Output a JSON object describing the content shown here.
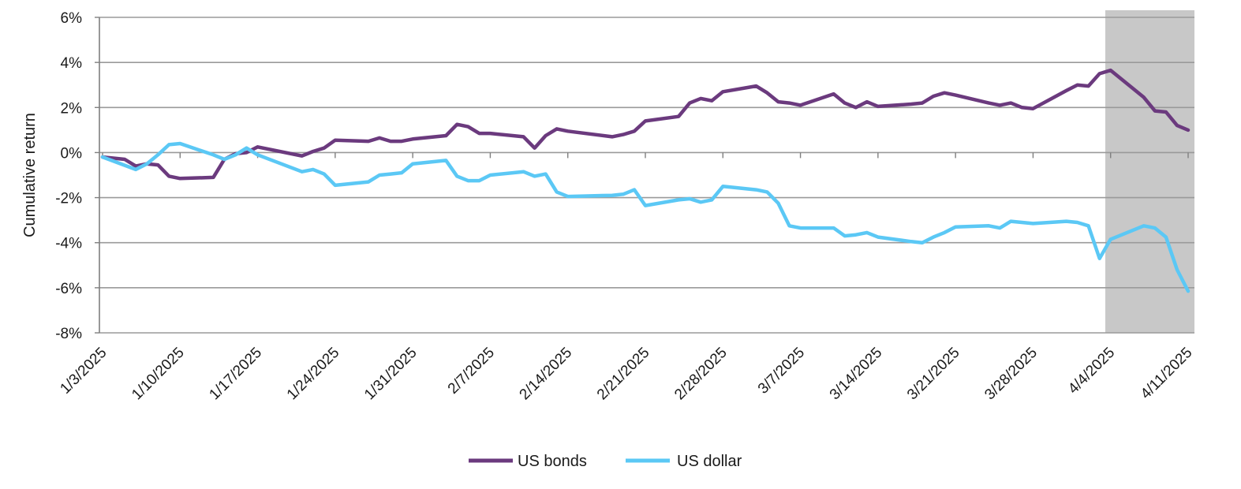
{
  "chart_data": {
    "type": "line",
    "title": "",
    "xlabel": "",
    "ylabel": "Cumulative return",
    "ylim": [
      -8,
      6
    ],
    "y_ticks": [
      6,
      4,
      2,
      0,
      -2,
      -4,
      -6,
      -8
    ],
    "y_tick_labels": [
      "6%",
      "4%",
      "2%",
      "0%",
      "-2%",
      "-4%",
      "-6%",
      "-8%"
    ],
    "x_range": [
      "2025-01-03",
      "2025-04-11"
    ],
    "x_ticks": [
      "2025-01-03",
      "2025-01-10",
      "2025-01-17",
      "2025-01-24",
      "2025-01-31",
      "2025-02-07",
      "2025-02-14",
      "2025-02-21",
      "2025-02-28",
      "2025-03-07",
      "2025-03-14",
      "2025-03-21",
      "2025-03-28",
      "2025-04-04",
      "2025-04-11"
    ],
    "x_tick_labels": [
      "1/3/2025",
      "1/10/2025",
      "1/17/2025",
      "1/24/2025",
      "1/31/2025",
      "2/7/2025",
      "2/14/2025",
      "2/21/2025",
      "2/28/2025",
      "3/7/2025",
      "3/14/2025",
      "3/21/2025",
      "3/28/2025",
      "4/4/2025",
      "4/11/2025"
    ],
    "grid": "horizontal",
    "legend_position": "bottom-center",
    "shaded_region": {
      "from": "2025-04-04",
      "to": "2025-04-11",
      "color": "#c8c8c8"
    },
    "series": [
      {
        "name": "US bonds",
        "color": "#6b3a7e",
        "x": [
          "2025-01-03",
          "2025-01-05",
          "2025-01-06",
          "2025-01-07",
          "2025-01-08",
          "2025-01-09",
          "2025-01-10",
          "2025-01-13",
          "2025-01-14",
          "2025-01-15",
          "2025-01-16",
          "2025-01-17",
          "2025-01-21",
          "2025-01-22",
          "2025-01-23",
          "2025-01-24",
          "2025-01-27",
          "2025-01-28",
          "2025-01-29",
          "2025-01-30",
          "2025-01-31",
          "2025-02-03",
          "2025-02-04",
          "2025-02-05",
          "2025-02-06",
          "2025-02-07",
          "2025-02-10",
          "2025-02-11",
          "2025-02-12",
          "2025-02-13",
          "2025-02-14",
          "2025-02-18",
          "2025-02-19",
          "2025-02-20",
          "2025-02-21",
          "2025-02-24",
          "2025-02-25",
          "2025-02-26",
          "2025-02-27",
          "2025-02-28",
          "2025-03-03",
          "2025-03-04",
          "2025-03-05",
          "2025-03-06",
          "2025-03-07",
          "2025-03-10",
          "2025-03-11",
          "2025-03-12",
          "2025-03-13",
          "2025-03-14",
          "2025-03-17",
          "2025-03-18",
          "2025-03-19",
          "2025-03-20",
          "2025-03-21",
          "2025-03-24",
          "2025-03-25",
          "2025-03-26",
          "2025-03-27",
          "2025-03-28",
          "2025-03-31",
          "2025-04-01",
          "2025-04-02",
          "2025-04-03",
          "2025-04-04",
          "2025-04-07",
          "2025-04-08",
          "2025-04-09",
          "2025-04-10",
          "2025-04-11"
        ],
        "values": [
          -0.2,
          -0.3,
          -0.6,
          -0.5,
          -0.55,
          -1.05,
          -1.15,
          -1.1,
          -0.3,
          -0.05,
          0.0,
          0.25,
          -0.15,
          0.05,
          0.2,
          0.55,
          0.5,
          0.65,
          0.5,
          0.5,
          0.6,
          0.75,
          1.25,
          1.15,
          0.85,
          0.85,
          0.7,
          0.2,
          0.75,
          1.05,
          0.95,
          0.7,
          0.8,
          0.95,
          1.4,
          1.6,
          2.2,
          2.4,
          2.3,
          2.7,
          2.95,
          2.65,
          2.25,
          2.2,
          2.1,
          2.6,
          2.2,
          2.0,
          2.25,
          2.05,
          2.15,
          2.2,
          2.5,
          2.65,
          2.55,
          2.2,
          2.1,
          2.2,
          2.0,
          1.95,
          2.75,
          3.0,
          2.95,
          3.5,
          3.65,
          2.45,
          1.85,
          1.8,
          1.2,
          1.0
        ]
      },
      {
        "name": "US dollar",
        "color": "#5bc8f5",
        "x": [
          "2025-01-03",
          "2025-01-06",
          "2025-01-07",
          "2025-01-08",
          "2025-01-09",
          "2025-01-10",
          "2025-01-13",
          "2025-01-14",
          "2025-01-15",
          "2025-01-16",
          "2025-01-17",
          "2025-01-21",
          "2025-01-22",
          "2025-01-23",
          "2025-01-24",
          "2025-01-27",
          "2025-01-28",
          "2025-01-29",
          "2025-01-30",
          "2025-01-31",
          "2025-02-03",
          "2025-02-04",
          "2025-02-05",
          "2025-02-06",
          "2025-02-07",
          "2025-02-10",
          "2025-02-11",
          "2025-02-12",
          "2025-02-13",
          "2025-02-14",
          "2025-02-18",
          "2025-02-19",
          "2025-02-20",
          "2025-02-21",
          "2025-02-24",
          "2025-02-25",
          "2025-02-26",
          "2025-02-27",
          "2025-02-28",
          "2025-03-03",
          "2025-03-04",
          "2025-03-05",
          "2025-03-06",
          "2025-03-07",
          "2025-03-10",
          "2025-03-11",
          "2025-03-12",
          "2025-03-13",
          "2025-03-14",
          "2025-03-17",
          "2025-03-18",
          "2025-03-19",
          "2025-03-20",
          "2025-03-21",
          "2025-03-24",
          "2025-03-25",
          "2025-03-26",
          "2025-03-27",
          "2025-03-28",
          "2025-03-31",
          "2025-04-01",
          "2025-04-02",
          "2025-04-03",
          "2025-04-04",
          "2025-04-07",
          "2025-04-08",
          "2025-04-09",
          "2025-04-10",
          "2025-04-11"
        ],
        "values": [
          -0.2,
          -0.75,
          -0.5,
          -0.1,
          0.35,
          0.4,
          -0.1,
          -0.3,
          -0.1,
          0.2,
          -0.1,
          -0.85,
          -0.75,
          -0.95,
          -1.45,
          -1.3,
          -1.0,
          -0.95,
          -0.9,
          -0.5,
          -0.35,
          -1.05,
          -1.25,
          -1.25,
          -1.0,
          -0.85,
          -1.05,
          -0.95,
          -1.75,
          -1.95,
          -1.9,
          -1.85,
          -1.65,
          -2.35,
          -2.1,
          -2.05,
          -2.2,
          -2.1,
          -1.5,
          -1.65,
          -1.75,
          -2.25,
          -3.25,
          -3.35,
          -3.35,
          -3.7,
          -3.65,
          -3.55,
          -3.75,
          -3.95,
          -4.0,
          -3.75,
          -3.55,
          -3.3,
          -3.25,
          -3.35,
          -3.05,
          -3.1,
          -3.15,
          -3.05,
          -3.1,
          -3.25,
          -4.7,
          -3.85,
          -3.25,
          -3.35,
          -3.75,
          -5.2,
          -6.15
        ]
      }
    ]
  }
}
